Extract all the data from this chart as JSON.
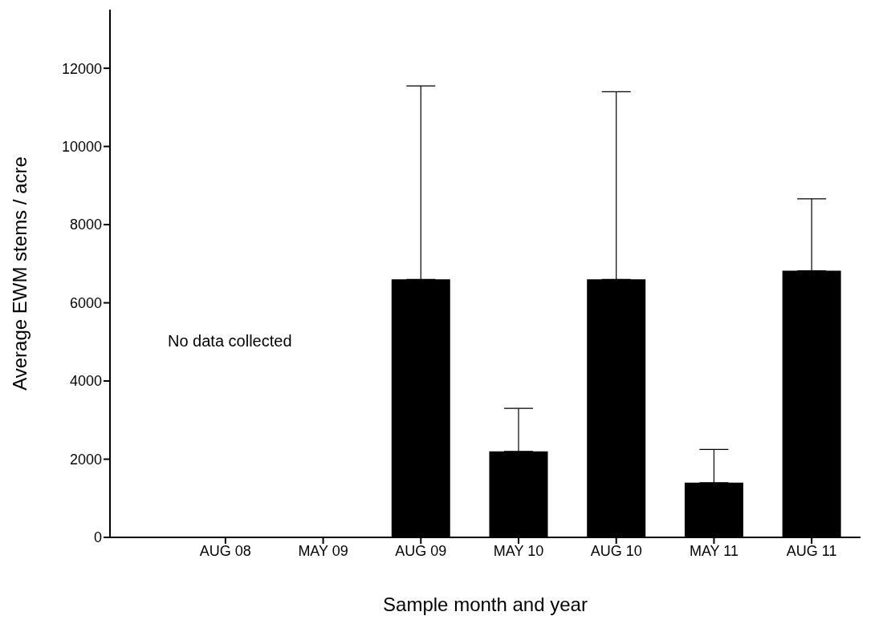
{
  "chart_data": {
    "type": "bar",
    "xlabel": "Sample month and year",
    "ylabel": "Average EWM stems / acre",
    "categories": [
      "AUG 08",
      "MAY 09",
      "AUG 09",
      "MAY 10",
      "AUG 10",
      "MAY 11",
      "AUG 11"
    ],
    "values": [
      null,
      null,
      6600,
      2200,
      6600,
      1400,
      6820
    ],
    "errors": [
      null,
      null,
      [
        6600,
        11550
      ],
      [
        2200,
        3300
      ],
      [
        6600,
        11400
      ],
      [
        1400,
        2250
      ],
      [
        6820,
        8660
      ]
    ],
    "color": "#000000",
    "ylim": [
      0,
      13500
    ],
    "yticks": [
      0,
      2000,
      4000,
      6000,
      8000,
      10000,
      12000
    ],
    "grid": false,
    "annotations": [
      "No data collected"
    ]
  }
}
